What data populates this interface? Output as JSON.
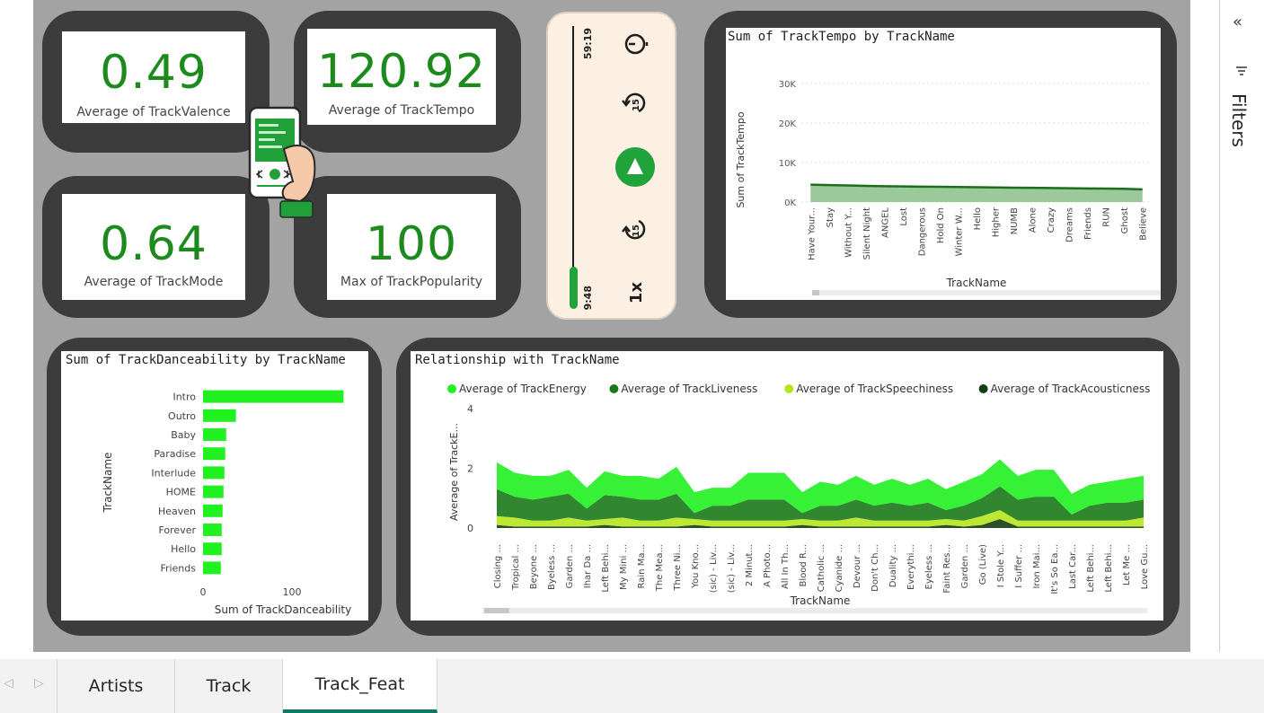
{
  "kpis": [
    {
      "value": "0.49",
      "label": "Average of TrackValence"
    },
    {
      "value": "120.92",
      "label": "Average of TrackTempo"
    },
    {
      "value": "0.64",
      "label": "Average of TrackMode"
    },
    {
      "value": "100",
      "label": "Max of TrackPopularity"
    }
  ],
  "player": {
    "total_time": "59:19",
    "elapsed_time": "9:48",
    "speed": "1x",
    "skip_seconds": "15",
    "progress": 0.13
  },
  "colors": {
    "accent_green": "#1c8a1c",
    "bright_green": "#21f021",
    "frame": "#3c3c3c",
    "canvas": "#a3a3a3"
  },
  "pane": {
    "filters_label": "Filters",
    "collapse_icon": "double-chevron-left-icon",
    "filter_icon": "filter-lines-icon"
  },
  "tabs": [
    {
      "label": "Artists",
      "active": false
    },
    {
      "label": "Track",
      "active": false
    },
    {
      "label": "Track_Feat",
      "active": true
    }
  ],
  "chart_data": [
    {
      "type": "area",
      "title": "Sum of TrackTempo by TrackName",
      "xlabel": "TrackName",
      "ylabel": "Sum of TrackTempo",
      "ylim": [
        0,
        35000
      ],
      "yticks": [
        "0K",
        "10K",
        "20K",
        "30K"
      ],
      "yticks_values": [
        0,
        10000,
        20000,
        30000
      ],
      "grid": true,
      "categories": [
        "Have Your...",
        "Stay",
        "Without Y...",
        "Silent Night",
        "ANGEL",
        "Lost",
        "Dangerous",
        "Hold On",
        "Winter W...",
        "Hello",
        "Higher",
        "NUMB",
        "Alone",
        "Crazy",
        "Dreams",
        "Friends",
        "RUN",
        "Ghost",
        "Believe"
      ],
      "values": [
        4400,
        4300,
        4200,
        4100,
        4000,
        3950,
        3900,
        3850,
        3800,
        3750,
        3700,
        3650,
        3600,
        3550,
        3500,
        3450,
        3400,
        3350,
        3200
      ]
    },
    {
      "type": "bar",
      "orientation": "horizontal",
      "title": "Sum of TrackDanceability by TrackName",
      "xlabel": "Sum of TrackDanceability",
      "ylabel": "TrackName",
      "xlim": [
        0,
        200
      ],
      "xticks": [
        "0",
        "100",
        "200"
      ],
      "xticks_values": [
        0,
        100,
        200
      ],
      "categories": [
        "Intro",
        "Outro",
        "Baby",
        "Paradise",
        "Interlude",
        "HOME",
        "Heaven",
        "Forever",
        "Hello",
        "Friends"
      ],
      "values": [
        158,
        37,
        26,
        25,
        24,
        23,
        22,
        21,
        21,
        20
      ]
    },
    {
      "type": "area",
      "stacked": true,
      "title": "Relationship with TrackName",
      "xlabel": "TrackName",
      "ylabel": "Average of TrackE...",
      "ylim": [
        0,
        4
      ],
      "yticks": [
        "0",
        "2",
        "4"
      ],
      "yticks_values": [
        0,
        2,
        4
      ],
      "legend_position": "top-left",
      "categories": [
        "Closing ...",
        "Tropical ...",
        "Beyone ...",
        "Byeless ...",
        "Garden ...",
        "Ihar Da ...",
        "Left Behi...",
        "My Mini ...",
        "Rain Ma...",
        "The Mea...",
        "Three Ni...",
        "You Kno...",
        "(sic) - Liv...",
        "(sic) - Liv...",
        "2 Minut...",
        "A Photo...",
        "All In Th...",
        "Blood R...",
        "Catholic ...",
        "Cyanide ...",
        "Devour ...",
        "Don't Ch...",
        "Duality ...",
        "Everythi...",
        "Eyeless ...",
        "Faint Res...",
        "Garden ...",
        "Go (Live)",
        "I Stole Y...",
        "I Suffer ...",
        "Iron Mai...",
        "It's So Ea...",
        "Last Car...",
        "Left Behi...",
        "Left Behi...",
        "Let Me ...",
        "Love Gu..."
      ],
      "series": [
        {
          "name": "Average of TrackEnergy",
          "color": "#21f021",
          "values": [
            0.9,
            0.8,
            0.8,
            0.7,
            0.8,
            0.7,
            0.8,
            0.7,
            0.8,
            0.7,
            0.9,
            0.7,
            0.6,
            0.6,
            0.9,
            0.9,
            0.9,
            0.7,
            0.8,
            0.7,
            0.8,
            0.7,
            0.8,
            0.7,
            0.8,
            0.7,
            0.8,
            0.8,
            0.9,
            0.8,
            0.9,
            0.9,
            0.7,
            0.7,
            0.7,
            0.8,
            0.8
          ]
        },
        {
          "name": "Average of TrackLiveness",
          "color": "#1a7a1a",
          "values": [
            0.9,
            0.7,
            0.7,
            0.8,
            0.8,
            0.4,
            0.8,
            0.7,
            0.7,
            0.7,
            0.8,
            0.2,
            0.5,
            0.5,
            0.7,
            0.7,
            0.7,
            0.2,
            0.5,
            0.5,
            0.6,
            0.5,
            0.6,
            0.5,
            0.6,
            0.3,
            0.5,
            0.6,
            0.8,
            0.7,
            0.8,
            0.8,
            0.2,
            0.5,
            0.6,
            0.6,
            0.6
          ]
        },
        {
          "name": "Average of TrackSpeechiness",
          "color": "#b5e61d",
          "values": [
            0.3,
            0.3,
            0.2,
            0.2,
            0.3,
            0.2,
            0.2,
            0.3,
            0.2,
            0.2,
            0.3,
            0.2,
            0.2,
            0.2,
            0.2,
            0.2,
            0.2,
            0.2,
            0.2,
            0.2,
            0.3,
            0.2,
            0.2,
            0.2,
            0.2,
            0.2,
            0.2,
            0.3,
            0.3,
            0.2,
            0.2,
            0.2,
            0.2,
            0.2,
            0.2,
            0.2,
            0.3
          ]
        },
        {
          "name": "Average of TrackAcousticness",
          "color": "#133d13",
          "values": [
            0.1,
            0.05,
            0.05,
            0.05,
            0.05,
            0.05,
            0.1,
            0.05,
            0.05,
            0.05,
            0.05,
            0.1,
            0.05,
            0.05,
            0.05,
            0.05,
            0.05,
            0.1,
            0.05,
            0.05,
            0.05,
            0.05,
            0.05,
            0.05,
            0.05,
            0.1,
            0.05,
            0.1,
            0.3,
            0.05,
            0.05,
            0.05,
            0.05,
            0.05,
            0.05,
            0.05,
            0.05
          ]
        }
      ]
    }
  ]
}
